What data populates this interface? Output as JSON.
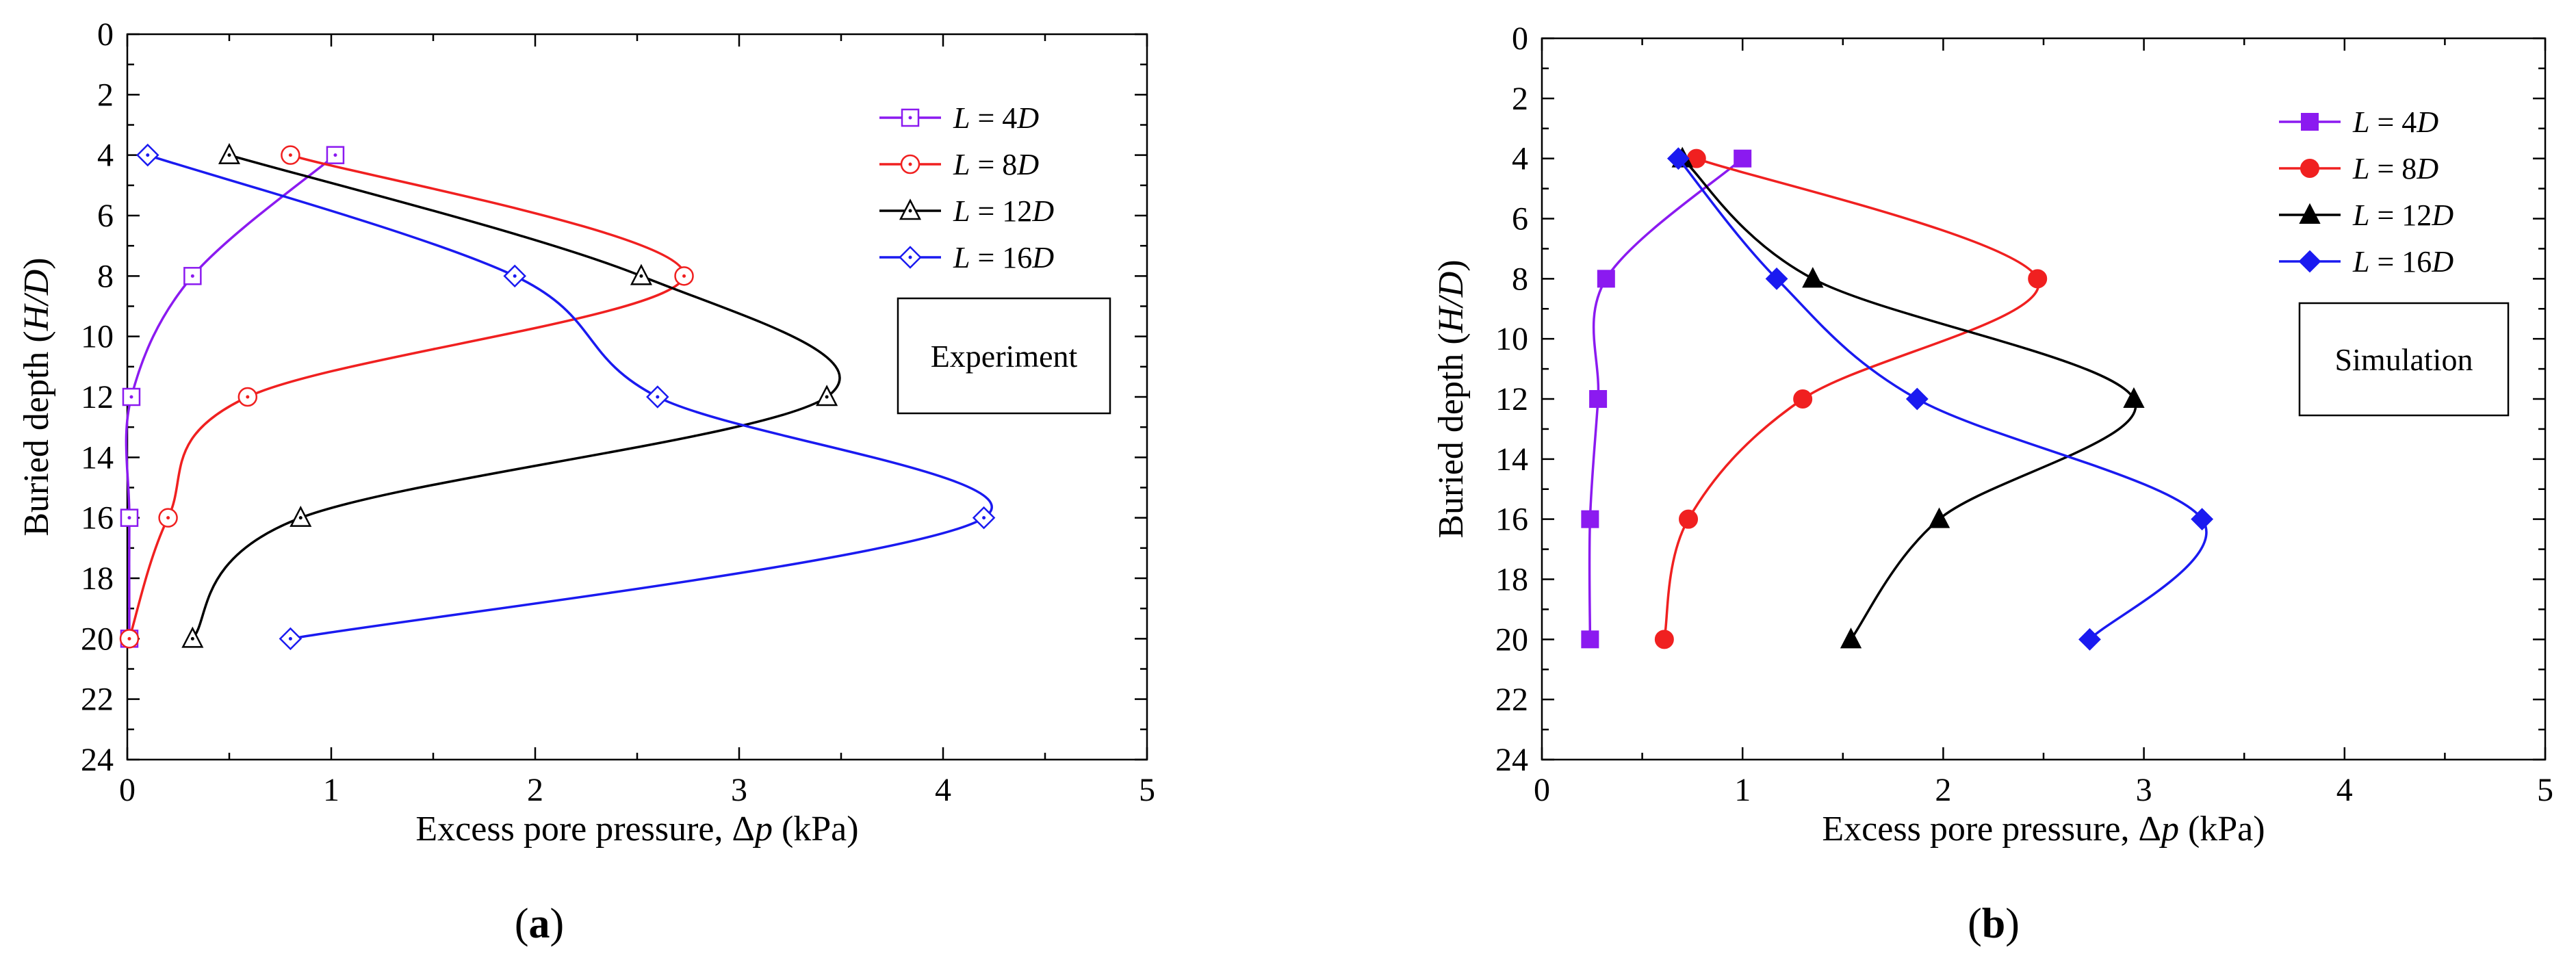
{
  "figure": {
    "panels": [
      {
        "panel_label": "a",
        "box_text": "Experiment",
        "marker_style": "open"
      },
      {
        "panel_label": "b",
        "box_text": "Simulation",
        "marker_style": "filled"
      }
    ]
  },
  "chart_data": [
    {
      "type": "line",
      "title": "",
      "xlabel_prefix": "Excess pore pressure, ",
      "xlabel_symbol": "Δ",
      "xlabel_var": "p",
      "xlabel_unit": " (kPa)",
      "ylabel_prefix": "Buried depth (",
      "ylabel_var": "H/D",
      "ylabel_suffix": ")",
      "xlim": [
        0,
        5
      ],
      "ylim": [
        0,
        24
      ],
      "y_inverted": true,
      "x_ticks": [
        0,
        1,
        2,
        3,
        4,
        5
      ],
      "y_ticks": [
        0,
        2,
        4,
        6,
        8,
        10,
        12,
        14,
        16,
        18,
        20,
        22,
        24
      ],
      "grid": false,
      "legend_position": "top-right",
      "series": [
        {
          "name": "L = 4D",
          "legend_prefix": "L",
          "legend_eq": " = 4",
          "legend_suffix": "D",
          "color": "#8B1AF0",
          "marker": "square",
          "x": [
            1.02,
            0.32,
            0.02,
            0.01,
            0.01
          ],
          "y": [
            4,
            8,
            12,
            16,
            20
          ]
        },
        {
          "name": "L = 8D",
          "legend_prefix": "L",
          "legend_eq": " =  8",
          "legend_suffix": "D",
          "color": "#F02020",
          "marker": "circle",
          "x": [
            0.8,
            2.73,
            0.59,
            0.2,
            0.01
          ],
          "y": [
            4,
            8,
            12,
            16,
            20
          ]
        },
        {
          "name": "L = 12D",
          "legend_prefix": "L",
          "legend_eq": " = 12",
          "legend_suffix": "D",
          "color": "#000000",
          "marker": "triangle",
          "x": [
            0.5,
            2.52,
            3.43,
            0.85,
            0.32
          ],
          "y": [
            4,
            8,
            12,
            16,
            20
          ]
        },
        {
          "name": "L = 16D",
          "legend_prefix": "L",
          "legend_eq": " = 16",
          "legend_suffix": "D",
          "color": "#1A1AF0",
          "marker": "diamond",
          "x": [
            0.1,
            1.9,
            2.6,
            4.2,
            0.8
          ],
          "y": [
            4,
            8,
            12,
            16,
            20
          ]
        }
      ]
    },
    {
      "type": "line",
      "title": "",
      "xlabel_prefix": "Excess pore pressure, ",
      "xlabel_symbol": "Δ",
      "xlabel_var": "p",
      "xlabel_unit": " (kPa)",
      "ylabel_prefix": "Buried depth (",
      "ylabel_var": "H/D",
      "ylabel_suffix": ")",
      "xlim": [
        0,
        5
      ],
      "ylim": [
        0,
        24
      ],
      "y_inverted": true,
      "x_ticks": [
        0,
        1,
        2,
        3,
        4,
        5
      ],
      "y_ticks": [
        0,
        2,
        4,
        6,
        8,
        10,
        12,
        14,
        16,
        18,
        20,
        22,
        24
      ],
      "grid": false,
      "legend_position": "top-right",
      "series": [
        {
          "name": "L = 4D",
          "legend_prefix": "L",
          "legend_eq": " = 4",
          "legend_suffix": "D",
          "color": "#8B1AF0",
          "marker": "square",
          "x": [
            1.0,
            0.32,
            0.28,
            0.24,
            0.24
          ],
          "y": [
            4,
            8,
            12,
            16,
            20
          ]
        },
        {
          "name": "L = 8D",
          "legend_prefix": "L",
          "legend_eq": " = 8",
          "legend_suffix": "D",
          "color": "#F02020",
          "marker": "circle",
          "x": [
            0.77,
            2.47,
            1.3,
            0.73,
            0.61
          ],
          "y": [
            4,
            8,
            12,
            16,
            20
          ]
        },
        {
          "name": "L = 12D",
          "legend_prefix": "L",
          "legend_eq": " = 12",
          "legend_suffix": "D",
          "color": "#000000",
          "marker": "triangle",
          "x": [
            0.7,
            1.35,
            2.95,
            1.98,
            1.54
          ],
          "y": [
            4,
            8,
            12,
            16,
            20
          ]
        },
        {
          "name": "L = 16D",
          "legend_prefix": "L",
          "legend_eq": " = 16",
          "legend_suffix": "D",
          "color": "#1A1AF0",
          "marker": "diamond",
          "x": [
            0.68,
            1.17,
            1.87,
            3.29,
            2.73
          ],
          "y": [
            4,
            8,
            12,
            16,
            20
          ]
        }
      ]
    }
  ]
}
